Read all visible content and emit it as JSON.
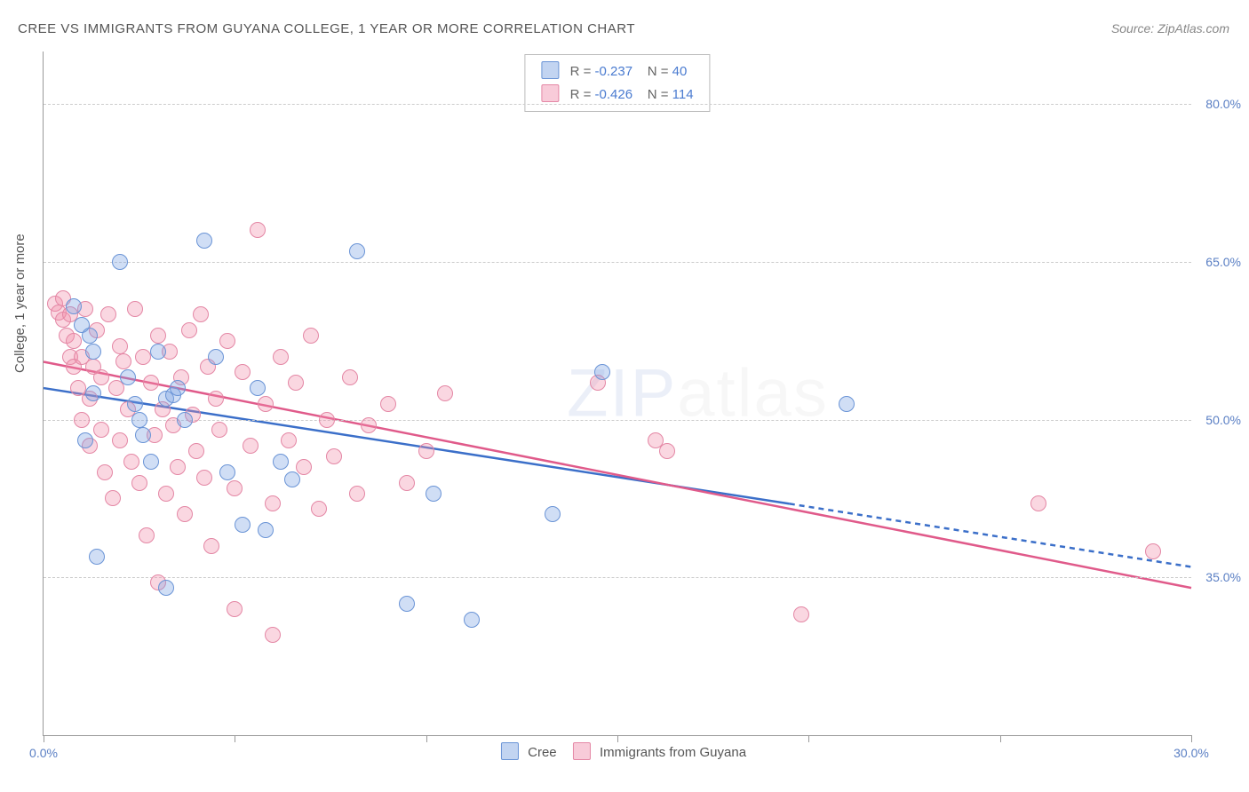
{
  "title": "CREE VS IMMIGRANTS FROM GUYANA COLLEGE, 1 YEAR OR MORE CORRELATION CHART",
  "source": "Source: ZipAtlas.com",
  "ylabel": "College, 1 year or more",
  "watermark_a": "ZIP",
  "watermark_b": "atlas",
  "chart": {
    "type": "scatter",
    "background_color": "#ffffff",
    "grid_color": "#cccccc",
    "axis_color": "#999999",
    "label_color": "#555555",
    "tick_color": "#5a7fc4",
    "xlim": [
      0,
      30
    ],
    "ylim": [
      20,
      85
    ],
    "x_ticks": [
      0,
      5,
      10,
      15,
      20,
      25,
      30
    ],
    "x_tick_labels": {
      "0": "0.0%",
      "30": "30.0%"
    },
    "y_grid": [
      35,
      50,
      65,
      80
    ],
    "y_tick_labels": {
      "35": "35.0%",
      "50": "50.0%",
      "65": "65.0%",
      "80": "80.0%"
    },
    "marker_radius": 9,
    "marker_border": 1.5,
    "series": {
      "cree": {
        "label": "Cree",
        "fill": "rgba(120,160,225,0.35)",
        "stroke": "#6a94d6",
        "line_color": "#3b6fc9",
        "R": "-0.237",
        "N": "40",
        "regression": {
          "x1": 0,
          "y1": 53.0,
          "x2": 19.5,
          "y2": 42.0,
          "x2_dash": 30,
          "y2_dash": 36.0
        },
        "points": [
          [
            0.8,
            60.8
          ],
          [
            1.0,
            59.0
          ],
          [
            1.2,
            58.0
          ],
          [
            1.3,
            56.5
          ],
          [
            1.1,
            48.0
          ],
          [
            1.3,
            52.5
          ],
          [
            2.0,
            65.0
          ],
          [
            2.2,
            54.0
          ],
          [
            2.4,
            51.5
          ],
          [
            2.5,
            50.0
          ],
          [
            2.6,
            48.5
          ],
          [
            2.8,
            46.0
          ],
          [
            3.0,
            56.5
          ],
          [
            3.2,
            52.0
          ],
          [
            3.4,
            52.3
          ],
          [
            3.5,
            53.0
          ],
          [
            3.7,
            50.0
          ],
          [
            3.2,
            34.0
          ],
          [
            1.4,
            37.0
          ],
          [
            4.2,
            67.0
          ],
          [
            4.5,
            56.0
          ],
          [
            4.8,
            45.0
          ],
          [
            5.2,
            40.0
          ],
          [
            5.6,
            53.0
          ],
          [
            5.8,
            39.5
          ],
          [
            6.2,
            46.0
          ],
          [
            6.5,
            44.3
          ],
          [
            8.2,
            66.0
          ],
          [
            9.5,
            32.5
          ],
          [
            10.2,
            43.0
          ],
          [
            11.2,
            31.0
          ],
          [
            13.3,
            41.0
          ],
          [
            14.6,
            54.5
          ],
          [
            21.0,
            51.5
          ]
        ]
      },
      "guyana": {
        "label": "Immigrants from Guyana",
        "fill": "rgba(240,140,170,0.35)",
        "stroke": "#e487a5",
        "line_color": "#e05a8a",
        "R": "-0.426",
        "N": "114",
        "regression": {
          "x1": 0,
          "y1": 55.5,
          "x2": 30,
          "y2": 34.0
        },
        "points": [
          [
            0.3,
            61.0
          ],
          [
            0.4,
            60.2
          ],
          [
            0.5,
            61.5
          ],
          [
            0.5,
            59.5
          ],
          [
            0.6,
            58.0
          ],
          [
            0.7,
            60.0
          ],
          [
            0.7,
            56.0
          ],
          [
            0.8,
            55.0
          ],
          [
            0.8,
            57.5
          ],
          [
            0.9,
            53.0
          ],
          [
            1.0,
            56.0
          ],
          [
            1.0,
            50.0
          ],
          [
            1.1,
            60.5
          ],
          [
            1.2,
            52.0
          ],
          [
            1.2,
            47.5
          ],
          [
            1.3,
            55.0
          ],
          [
            1.4,
            58.5
          ],
          [
            1.5,
            54.0
          ],
          [
            1.5,
            49.0
          ],
          [
            1.6,
            45.0
          ],
          [
            1.7,
            60.0
          ],
          [
            1.8,
            42.5
          ],
          [
            1.9,
            53.0
          ],
          [
            2.0,
            57.0
          ],
          [
            2.0,
            48.0
          ],
          [
            2.1,
            55.5
          ],
          [
            2.2,
            51.0
          ],
          [
            2.3,
            46.0
          ],
          [
            2.4,
            60.5
          ],
          [
            2.5,
            44.0
          ],
          [
            2.6,
            56.0
          ],
          [
            2.7,
            39.0
          ],
          [
            2.8,
            53.5
          ],
          [
            2.9,
            48.5
          ],
          [
            3.0,
            58.0
          ],
          [
            3.0,
            34.5
          ],
          [
            3.1,
            51.0
          ],
          [
            3.2,
            43.0
          ],
          [
            3.3,
            56.5
          ],
          [
            3.4,
            49.5
          ],
          [
            3.5,
            45.5
          ],
          [
            3.6,
            54.0
          ],
          [
            3.7,
            41.0
          ],
          [
            3.8,
            58.5
          ],
          [
            3.9,
            50.5
          ],
          [
            4.0,
            47.0
          ],
          [
            4.1,
            60.0
          ],
          [
            4.2,
            44.5
          ],
          [
            4.3,
            55.0
          ],
          [
            4.4,
            38.0
          ],
          [
            4.5,
            52.0
          ],
          [
            4.6,
            49.0
          ],
          [
            4.8,
            57.5
          ],
          [
            5.0,
            43.5
          ],
          [
            5.0,
            32.0
          ],
          [
            5.2,
            54.5
          ],
          [
            5.4,
            47.5
          ],
          [
            5.6,
            68.0
          ],
          [
            5.8,
            51.5
          ],
          [
            6.0,
            42.0
          ],
          [
            6.0,
            29.5
          ],
          [
            6.2,
            56.0
          ],
          [
            6.4,
            48.0
          ],
          [
            6.6,
            53.5
          ],
          [
            6.8,
            45.5
          ],
          [
            7.0,
            58.0
          ],
          [
            7.2,
            41.5
          ],
          [
            7.4,
            50.0
          ],
          [
            7.6,
            46.5
          ],
          [
            8.0,
            54.0
          ],
          [
            8.2,
            43.0
          ],
          [
            8.5,
            49.5
          ],
          [
            9.0,
            51.5
          ],
          [
            9.5,
            44.0
          ],
          [
            10.0,
            47.0
          ],
          [
            10.5,
            52.5
          ],
          [
            14.5,
            53.5
          ],
          [
            16.0,
            48.0
          ],
          [
            16.3,
            47.0
          ],
          [
            19.8,
            31.5
          ],
          [
            26.0,
            42.0
          ],
          [
            29.0,
            37.5
          ]
        ]
      }
    }
  },
  "legend_swatch": {
    "cree": {
      "fill": "rgba(120,160,225,0.45)",
      "border": "#6a94d6"
    },
    "guyana": {
      "fill": "rgba(240,140,170,0.45)",
      "border": "#e487a5"
    }
  }
}
